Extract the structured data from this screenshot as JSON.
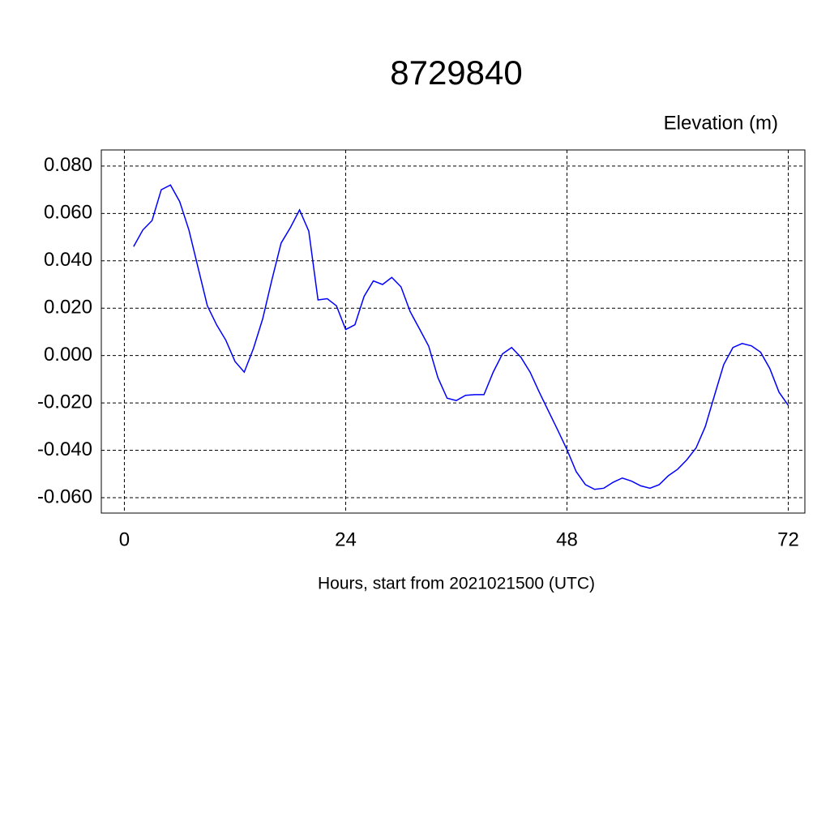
{
  "chart_data": {
    "type": "line",
    "title": "8729840",
    "subtitle": "Elevation (m)",
    "x_label": "Hours, start from 2021021500 (UTC)",
    "x": [
      1,
      2,
      3,
      4,
      5,
      6,
      7,
      8,
      9,
      10,
      11,
      12,
      13,
      14,
      15,
      16,
      17,
      18,
      19,
      20,
      21,
      22,
      23,
      24,
      25,
      26,
      27,
      28,
      29,
      30,
      31,
      32,
      33,
      34,
      35,
      36,
      37,
      38,
      39,
      40,
      41,
      42,
      43,
      44,
      45,
      46,
      47,
      48,
      49,
      50,
      51,
      52,
      53,
      54,
      55,
      56,
      57,
      58,
      59,
      60,
      61,
      62,
      63,
      64,
      65,
      66,
      67,
      68,
      69,
      70,
      71,
      72
    ],
    "series": [
      {
        "name": "Elevation",
        "color": "#0000ff",
        "values": [
          0.046,
          0.053,
          0.057,
          0.07,
          0.072,
          0.065,
          0.053,
          0.037,
          0.021,
          0.013,
          0.0065,
          -0.0025,
          -0.007,
          0.003,
          0.0155,
          0.032,
          0.0475,
          0.054,
          0.0615,
          0.0525,
          0.0235,
          0.024,
          0.021,
          0.011,
          0.013,
          0.025,
          0.0315,
          0.03,
          0.033,
          0.029,
          0.0185,
          0.0113,
          0.004,
          -0.0093,
          -0.018,
          -0.019,
          -0.0168,
          -0.0165,
          -0.0165,
          -0.007,
          0.0007,
          0.0034,
          -0.0007,
          -0.007,
          -0.0155,
          -0.0235,
          -0.0315,
          -0.0397,
          -0.049,
          -0.0545,
          -0.0565,
          -0.056,
          -0.0535,
          -0.0517,
          -0.053,
          -0.055,
          -0.056,
          -0.0545,
          -0.0507,
          -0.048,
          -0.044,
          -0.039,
          -0.03,
          -0.0168,
          -0.0038,
          0.0034,
          0.0051,
          0.0041,
          0.0014,
          -0.0055,
          -0.0155,
          -0.021
        ]
      }
    ],
    "xlim": [
      -2.5,
      73.8
    ],
    "xticks": [
      0,
      24,
      48,
      72
    ],
    "ylim": [
      -0.0665,
      0.0868
    ],
    "yticks": [
      {
        "value": -0.06,
        "label": "-0.060"
      },
      {
        "value": -0.04,
        "label": "-0.040"
      },
      {
        "value": -0.02,
        "label": "-0.020"
      },
      {
        "value": 0,
        "label": "0.000"
      },
      {
        "value": 0.02,
        "label": "0.020"
      },
      {
        "value": 0.04,
        "label": "0.040"
      },
      {
        "value": 0.06,
        "label": "0.060"
      },
      {
        "value": 0.08,
        "label": "0.080"
      }
    ],
    "grid": true
  }
}
